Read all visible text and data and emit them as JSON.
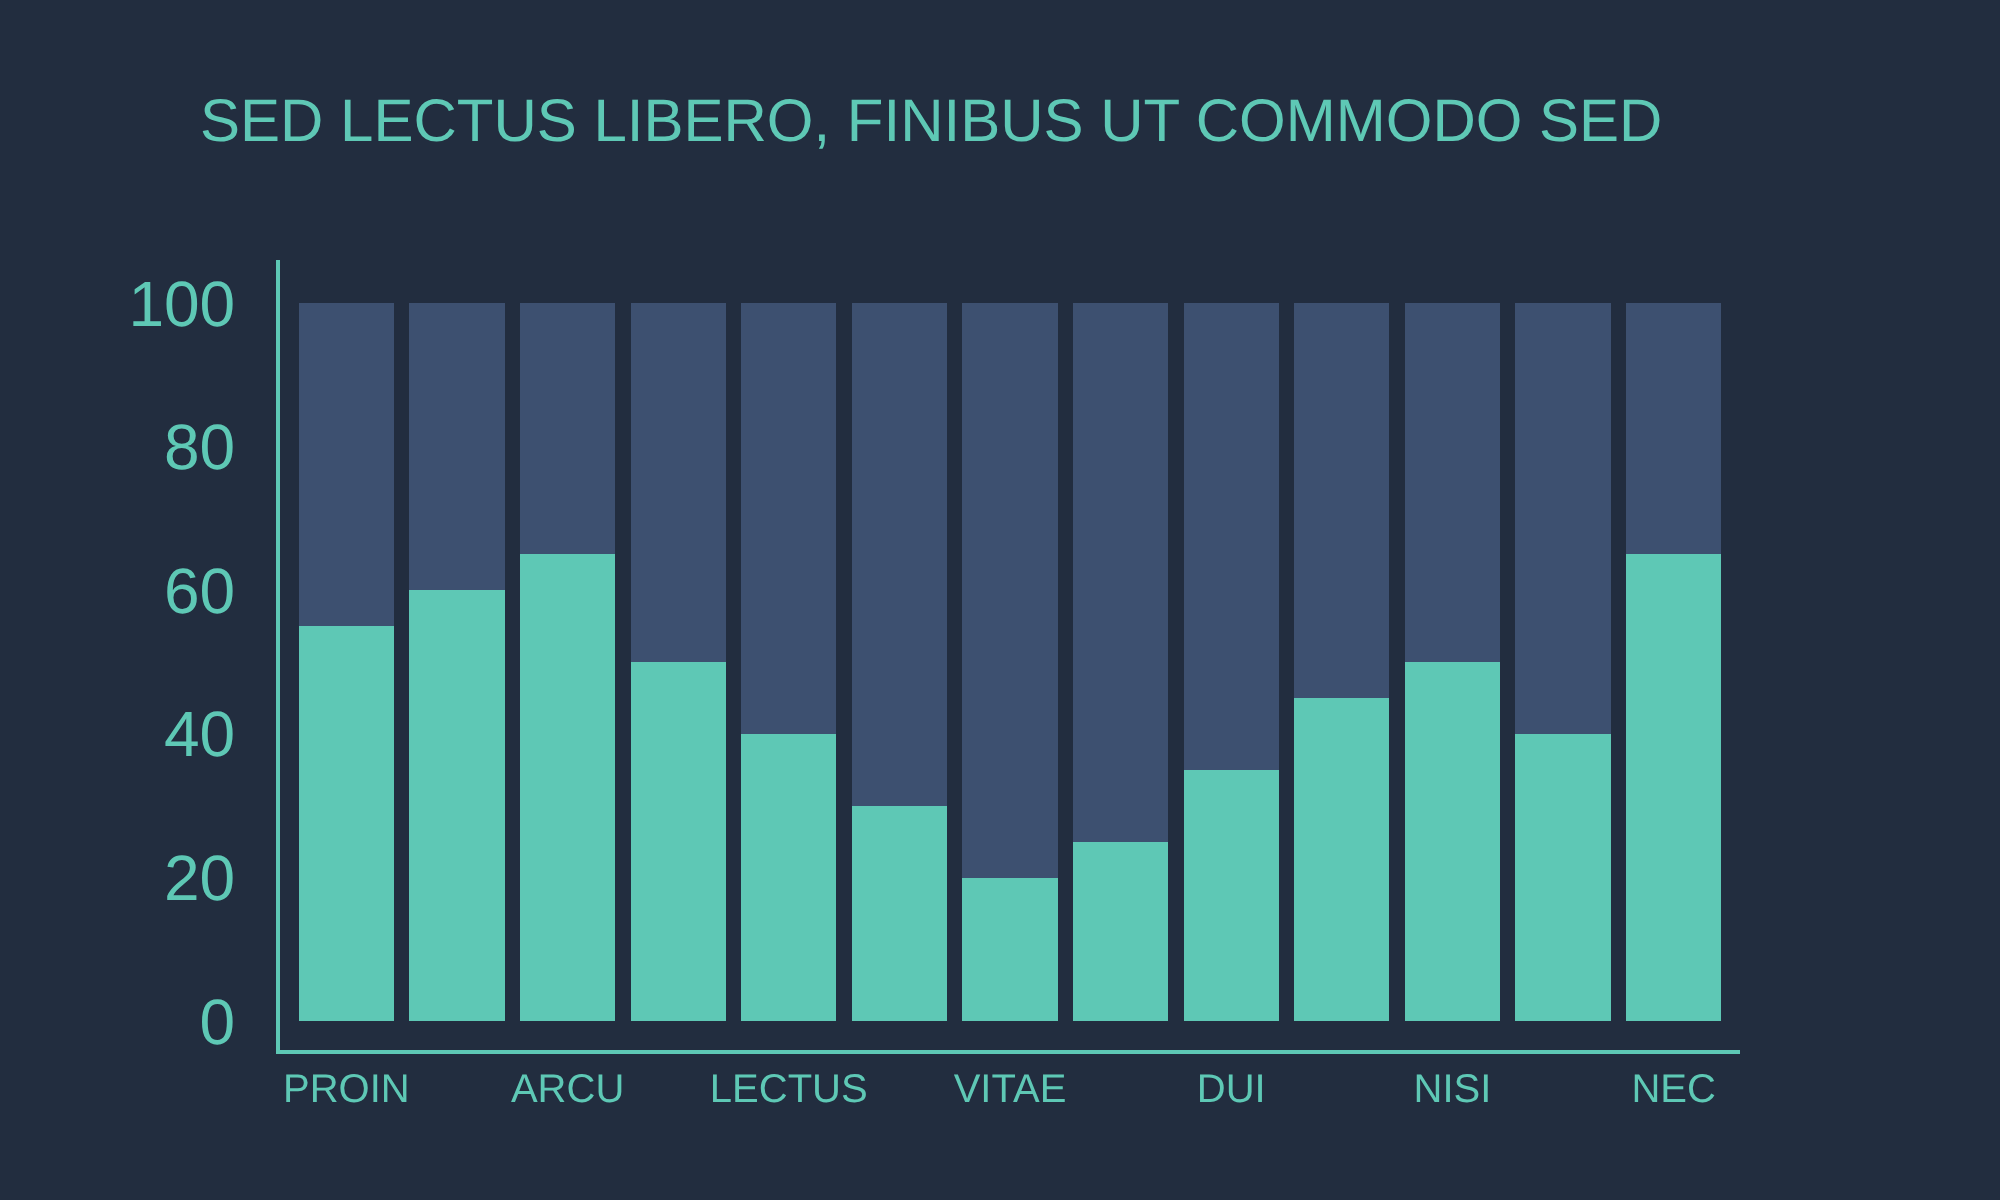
{
  "chart_data": {
    "type": "bar",
    "title": "SED LECTUS LIBERO, FINIBUS UT COMMODO SED",
    "categories": [
      "PROIN",
      null,
      "ARCU",
      null,
      "LECTUS",
      null,
      "VITAE",
      null,
      "DUI",
      null,
      "NISI",
      null,
      "NEC"
    ],
    "stacked": true,
    "series": [
      {
        "color": "#5ec8b5",
        "values": [
          55,
          60,
          65,
          50,
          40,
          30,
          20,
          25,
          35,
          45,
          50,
          40,
          65
        ]
      },
      {
        "color": "#3d5070",
        "values": [
          45,
          40,
          35,
          50,
          60,
          70,
          80,
          75,
          65,
          55,
          50,
          60,
          35
        ]
      }
    ],
    "ylim": [
      -4,
      106
    ],
    "yticks": [
      0,
      20,
      40,
      60,
      80,
      100
    ],
    "grid": false
  }
}
